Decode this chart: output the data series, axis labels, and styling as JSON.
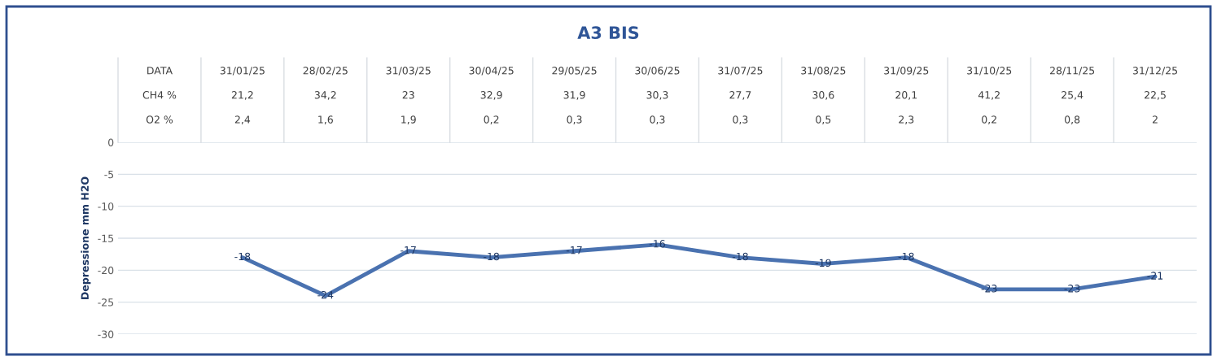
{
  "chart_data": {
    "type": "line",
    "title": "A3 BIS",
    "xlabel": "DATA",
    "ylabel": "Depressione mm H2O",
    "categories": [
      "31/01/25",
      "28/02/25",
      "31/03/25",
      "30/04/25",
      "29/05/25",
      "30/06/25",
      "31/07/25",
      "31/08/25",
      "31/09/25",
      "31/10/25",
      "28/11/25",
      "31/12/25"
    ],
    "annotations": [
      "CH4 %",
      "21,2",
      "34,2",
      "23",
      "32,9",
      "31,9",
      "30,3",
      "27,7",
      "30,6",
      "20,1",
      "41,2",
      "25,4",
      "22,5",
      "O2 %",
      "2,4",
      "1,6",
      "1,9",
      "0,2",
      "0,3",
      "0,3",
      "0,3",
      "0,5",
      "2,3",
      "0,2",
      "0,8",
      "2"
    ],
    "series": [
      {
        "color": "#4a72b0",
        "values": [
          -18,
          -24,
          -17,
          -18,
          -17,
          -16,
          -18,
          -19,
          -18,
          -23,
          -23,
          -21
        ]
      }
    ],
    "ylim": [
      -30,
      0
    ],
    "yticks": [
      0,
      -5,
      -10,
      -15,
      -20,
      -25,
      -30
    ],
    "grid": "y",
    "data_labels": true,
    "marker": "none",
    "line_style": "solid"
  }
}
